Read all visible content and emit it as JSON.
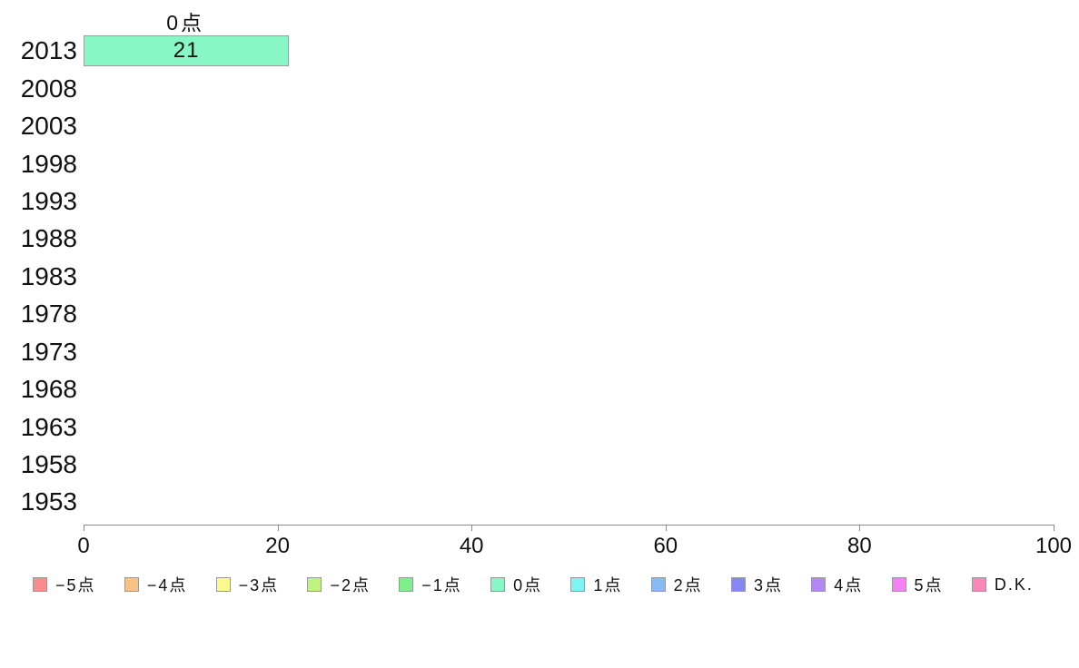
{
  "chart_data": {
    "type": "bar",
    "orientation": "horizontal",
    "title": "",
    "xlabel": "",
    "ylabel": "",
    "categories": [
      "2013",
      "2008",
      "2003",
      "1998",
      "1993",
      "1988",
      "1983",
      "1978",
      "1973",
      "1968",
      "1963",
      "1958",
      "1953"
    ],
    "series": [
      {
        "name": "0点",
        "color": "#87F8C5",
        "border_color": "#9e9e9e",
        "values": [
          21,
          null,
          null,
          null,
          null,
          null,
          null,
          null,
          null,
          null,
          null,
          null,
          null
        ]
      }
    ],
    "annotation": {
      "text": "0点",
      "target": "2013-bar",
      "position": "above-bar-centered"
    },
    "xlim": [
      0,
      100
    ],
    "xticks": [
      "0",
      "20",
      "40",
      "60",
      "80",
      "100"
    ],
    "grid": false,
    "legend_position": "bottom",
    "legend": [
      {
        "label": "−5点",
        "color": "#F98C8C"
      },
      {
        "label": "−4点",
        "color": "#F9C285"
      },
      {
        "label": "−3点",
        "color": "#F9F98F"
      },
      {
        "label": "−2点",
        "color": "#BFF57E"
      },
      {
        "label": "−1点",
        "color": "#7DF08D"
      },
      {
        "label": "0点",
        "color": "#87F8C5"
      },
      {
        "label": "1点",
        "color": "#7FF4F4"
      },
      {
        "label": "2点",
        "color": "#89B9F7"
      },
      {
        "label": "3点",
        "color": "#8687F2"
      },
      {
        "label": "4点",
        "color": "#B388F4"
      },
      {
        "label": "5点",
        "color": "#F57FF5"
      },
      {
        "label": "D.K.",
        "color": "#F987B7"
      }
    ]
  },
  "colors": {
    "axis": "#8a8a8a",
    "text": "#111111",
    "background": "#ffffff",
    "bar_border": "#9e9e9e"
  }
}
